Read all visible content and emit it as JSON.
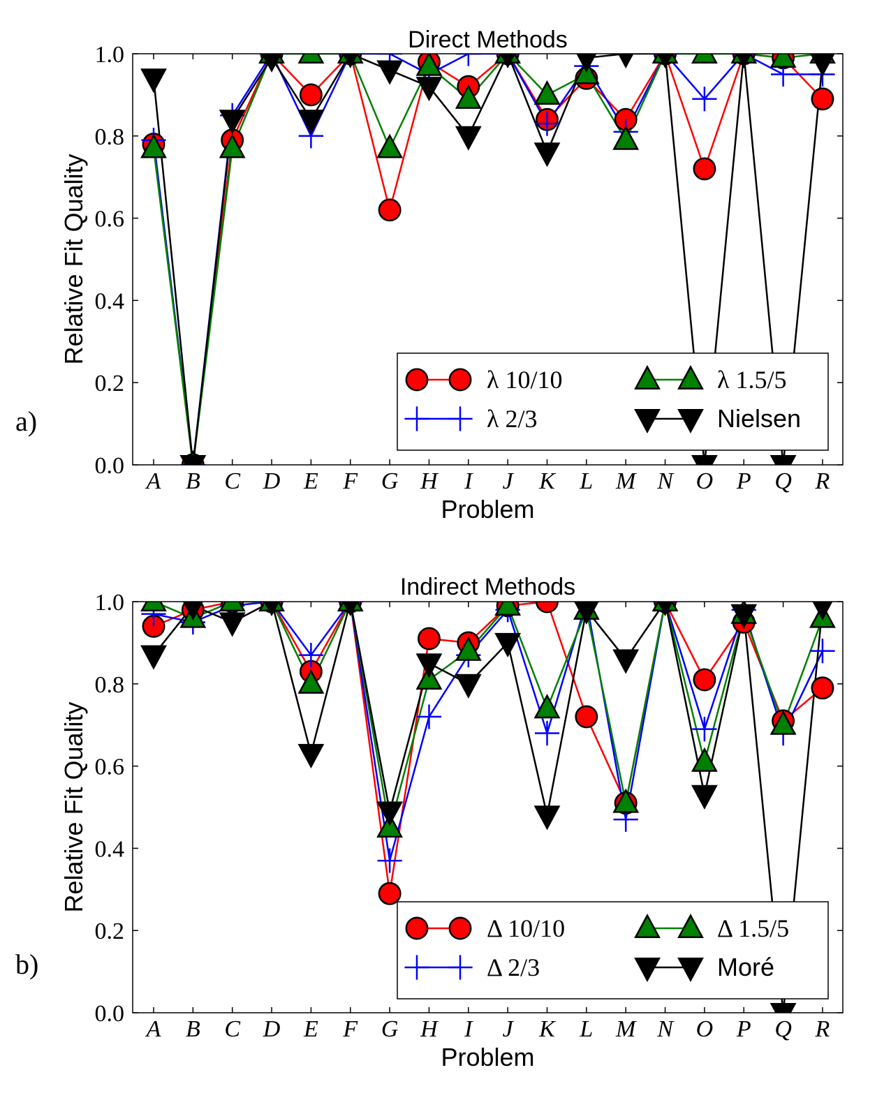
{
  "chart_data": [
    {
      "type": "line",
      "panel_label": "a)",
      "title": "Direct Methods",
      "xlabel": "Problem",
      "ylabel": "Relative Fit Quality",
      "categories": [
        "A",
        "B",
        "C",
        "D",
        "E",
        "F",
        "G",
        "H",
        "I",
        "J",
        "K",
        "L",
        "M",
        "N",
        "O",
        "P",
        "Q",
        "R"
      ],
      "ylim": [
        0,
        1
      ],
      "yticks": [
        "0.0",
        "0.2",
        "0.4",
        "0.6",
        "0.8",
        "1.0"
      ],
      "grid": false,
      "legend_location": "lower-right",
      "series": [
        {
          "name": "λ 10/10",
          "color": "#ff0000",
          "marker": "circle",
          "values": [
            0.78,
            0.0,
            0.79,
            1.0,
            0.9,
            1.0,
            0.62,
            0.98,
            0.92,
            1.0,
            0.84,
            0.94,
            0.84,
            1.0,
            0.72,
            1.0,
            0.99,
            0.89
          ]
        },
        {
          "name": "λ 2/3",
          "color": "#0000ff",
          "marker": "plus",
          "values": [
            0.79,
            0.0,
            0.85,
            1.0,
            0.8,
            1.0,
            1.0,
            0.95,
            1.0,
            1.0,
            0.83,
            0.97,
            0.81,
            1.0,
            0.89,
            1.0,
            0.95,
            0.95
          ]
        },
        {
          "name": "λ 1.5/5",
          "color": "#008000",
          "marker": "triangle-up",
          "values": [
            0.77,
            0.0,
            0.77,
            1.0,
            1.0,
            1.0,
            0.77,
            0.97,
            0.89,
            1.0,
            0.9,
            0.95,
            0.79,
            1.0,
            1.0,
            1.0,
            0.99,
            1.0
          ]
        },
        {
          "name": "Nielsen",
          "color": "#000000",
          "marker": "triangle-down",
          "values": [
            0.94,
            0.0,
            0.84,
            0.99,
            0.84,
            1.0,
            0.96,
            0.92,
            0.8,
            1.0,
            0.76,
            0.99,
            1.0,
            1.0,
            0.0,
            1.0,
            0.0,
            0.98
          ]
        }
      ]
    },
    {
      "type": "line",
      "panel_label": "b)",
      "title": "Indirect Methods",
      "xlabel": "Problem",
      "ylabel": "Relative Fit Quality",
      "categories": [
        "A",
        "B",
        "C",
        "D",
        "E",
        "F",
        "G",
        "H",
        "I",
        "J",
        "K",
        "L",
        "M",
        "N",
        "O",
        "P",
        "Q",
        "R"
      ],
      "ylim": [
        0,
        1
      ],
      "yticks": [
        "0.0",
        "0.2",
        "0.4",
        "0.6",
        "0.8",
        "1.0"
      ],
      "grid": false,
      "legend_location": "lower-right",
      "series": [
        {
          "name": "Δ 10/10",
          "color": "#ff0000",
          "marker": "circle",
          "values": [
            0.94,
            0.98,
            1.0,
            1.0,
            0.83,
            1.0,
            0.29,
            0.91,
            0.9,
            0.99,
            1.0,
            0.72,
            0.51,
            1.0,
            0.81,
            0.95,
            0.71,
            0.79
          ]
        },
        {
          "name": "Δ 2/3",
          "color": "#0000ff",
          "marker": "plus",
          "values": [
            0.97,
            0.95,
            0.99,
            1.0,
            0.87,
            1.0,
            0.37,
            0.72,
            0.87,
            0.98,
            0.68,
            1.0,
            0.47,
            1.0,
            0.69,
            0.98,
            0.68,
            0.88
          ]
        },
        {
          "name": "Δ 1.5/5",
          "color": "#008000",
          "marker": "triangle-up",
          "values": [
            1.0,
            0.96,
            1.0,
            1.0,
            0.8,
            1.0,
            0.45,
            0.81,
            0.88,
            0.99,
            0.74,
            0.98,
            0.51,
            1.0,
            0.61,
            0.97,
            0.7,
            0.96
          ]
        },
        {
          "name": "Moré",
          "color": "#000000",
          "marker": "triangle-down",
          "values": [
            0.87,
            0.99,
            0.95,
            1.0,
            0.63,
            1.0,
            0.49,
            0.85,
            0.8,
            0.9,
            0.48,
            0.98,
            0.86,
            1.0,
            0.53,
            0.97,
            0.0,
            0.99
          ]
        }
      ]
    }
  ]
}
